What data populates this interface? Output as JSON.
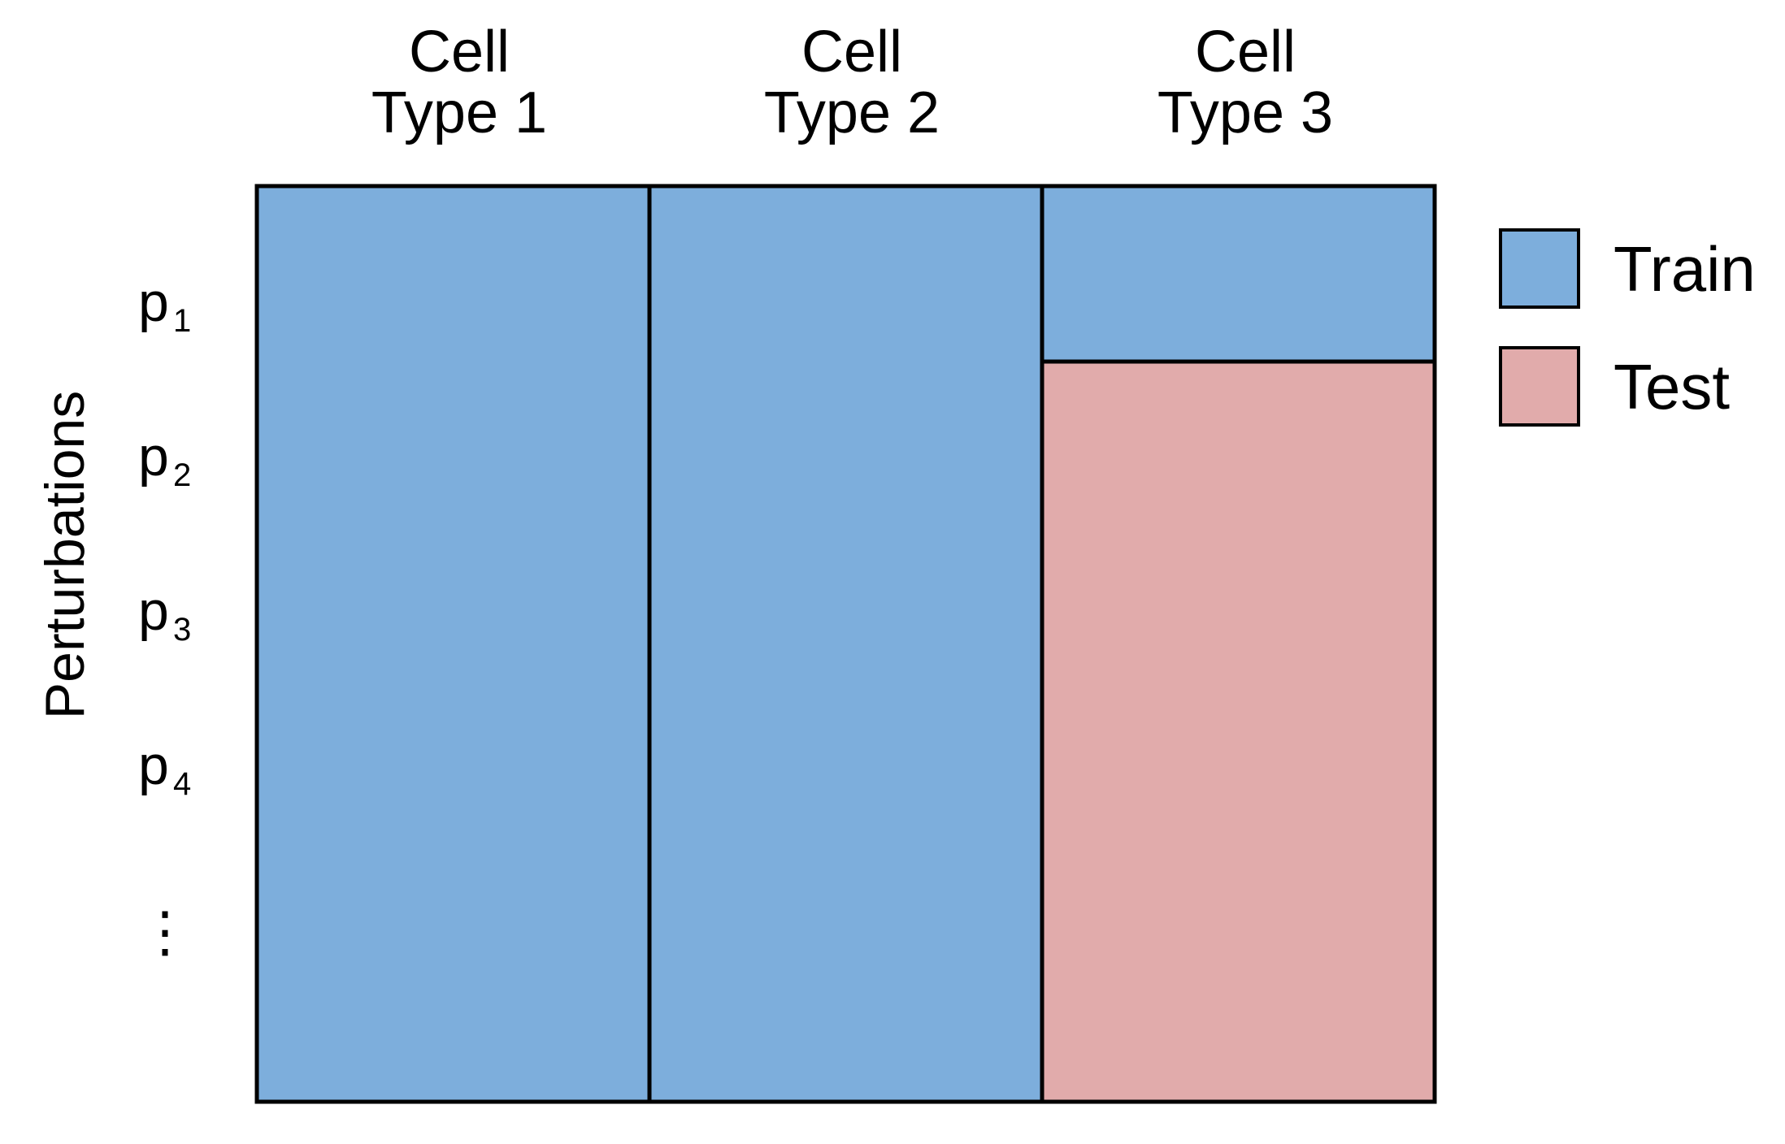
{
  "columns": [
    {
      "line1": "Cell",
      "line2": "Type 1"
    },
    {
      "line1": "Cell",
      "line2": "Type 2"
    },
    {
      "line1": "Cell",
      "line2": "Type 3"
    }
  ],
  "y_axis_label": "Perturbations",
  "rows": [
    {
      "base": "p",
      "sub": "1"
    },
    {
      "base": "p",
      "sub": "2"
    },
    {
      "base": "p",
      "sub": "3"
    },
    {
      "base": "p",
      "sub": "4"
    }
  ],
  "ellipsis": "⋮",
  "legend": [
    {
      "label": "Train",
      "color": "#7daedc"
    },
    {
      "label": "Test",
      "color": "#e1abab"
    }
  ],
  "blocks": [
    {
      "column": 1,
      "split": "Train",
      "rows": "all"
    },
    {
      "column": 2,
      "split": "Train",
      "rows": "all"
    },
    {
      "column": 3,
      "split": "Train",
      "rows": "p1"
    },
    {
      "column": 3,
      "split": "Test",
      "rows": "p2 onward"
    }
  ],
  "colors": {
    "train": "#7daedc",
    "test": "#e1abab",
    "border": "#000000"
  }
}
